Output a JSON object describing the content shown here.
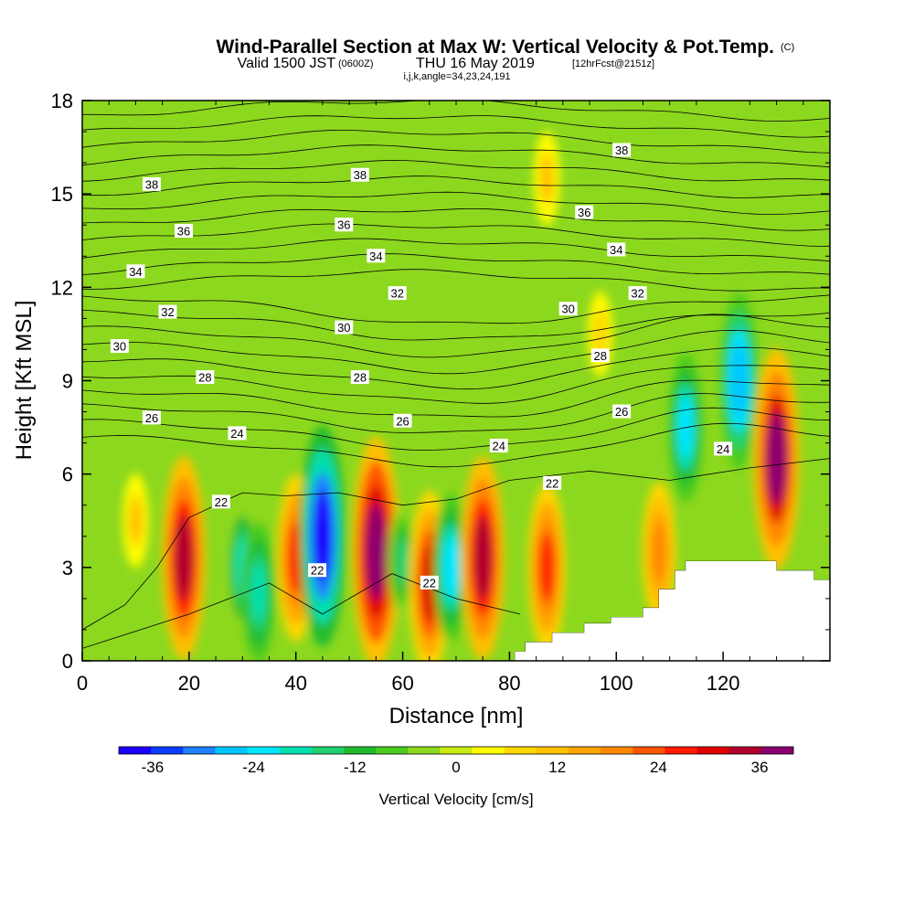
{
  "title": {
    "main": "Wind-Parallel Section at Max W: Vertical Velocity & Pot.Temp.",
    "main_suffix": "(C)",
    "valid_a": "Valid 1500 JST",
    "valid_b": "(0600Z)",
    "valid_c": "THU 16 May 2019",
    "valid_d": "[12hrFcst@2151z]",
    "indices": "i,j,k,angle=34,23,24,191"
  },
  "chart_data": {
    "type": "heatmap",
    "xlabel": "Distance [nm]",
    "ylabel": "Height [Kft MSL]",
    "xlim": [
      0,
      140
    ],
    "ylim": [
      0,
      18
    ],
    "x_ticks": [
      0,
      20,
      40,
      60,
      80,
      100,
      120
    ],
    "y_ticks": [
      0,
      3,
      6,
      9,
      12,
      15,
      18
    ],
    "fill_field": "Vertical Velocity [cm/s]",
    "contour_field": "Potential Temperature (C)",
    "colorbar": {
      "label": "Vertical Velocity [cm/s]",
      "min": -40,
      "max": 40,
      "step": 4,
      "tick_values": [
        -36,
        -24,
        -12,
        0,
        12,
        24,
        36
      ],
      "colors": [
        "#1a00ff",
        "#0a3cff",
        "#1e7fff",
        "#00c6ff",
        "#00e6ff",
        "#00e0b0",
        "#1ed070",
        "#22bb30",
        "#4ccc1e",
        "#8cd81e",
        "#c8ec14",
        "#fffc00",
        "#ffd700",
        "#ffc000",
        "#ffa500",
        "#ff8800",
        "#ff5500",
        "#ff1a00",
        "#e00000",
        "#b0002e",
        "#8b006e"
      ]
    },
    "w_cells": [
      {
        "x": 19,
        "y": 3.3,
        "w": 34,
        "type": "up"
      },
      {
        "x": 10,
        "y": 4.5,
        "w": 10,
        "type": "up"
      },
      {
        "x": 30,
        "y": 3.0,
        "w": -18,
        "type": "down"
      },
      {
        "x": 33,
        "y": 2.2,
        "w": -20,
        "type": "down"
      },
      {
        "x": 40,
        "y": 3.3,
        "w": 26,
        "type": "up"
      },
      {
        "x": 45,
        "y": 4.0,
        "w": -38,
        "type": "down"
      },
      {
        "x": 55,
        "y": 3.5,
        "w": 40,
        "type": "up"
      },
      {
        "x": 60,
        "y": 3.2,
        "w": -14,
        "type": "down"
      },
      {
        "x": 65,
        "y": 2.5,
        "w": 30,
        "type": "up"
      },
      {
        "x": 69,
        "y": 3.0,
        "w": -22,
        "type": "down"
      },
      {
        "x": 75,
        "y": 3.3,
        "w": 34,
        "type": "up"
      },
      {
        "x": 87,
        "y": 3.0,
        "w": 26,
        "type": "up"
      },
      {
        "x": 108,
        "y": 3.5,
        "w": 20,
        "type": "up"
      },
      {
        "x": 113,
        "y": 7.5,
        "w": -22,
        "type": "down"
      },
      {
        "x": 123,
        "y": 9.0,
        "w": -28,
        "type": "down"
      },
      {
        "x": 130,
        "y": 6.5,
        "w": 38,
        "type": "up"
      },
      {
        "x": 87,
        "y": 15.5,
        "w": 10,
        "type": "up"
      },
      {
        "x": 97,
        "y": 10.5,
        "w": 8,
        "type": "up"
      }
    ],
    "contour_levels": [
      {
        "value": "22",
        "labels": [
          [
            26,
            5.1
          ],
          [
            44,
            2.9
          ],
          [
            65,
            2.5
          ],
          [
            88,
            5.7
          ]
        ]
      },
      {
        "value": "24",
        "labels": [
          [
            29,
            7.3
          ],
          [
            78,
            6.9
          ],
          [
            120,
            6.8
          ]
        ]
      },
      {
        "value": "26",
        "labels": [
          [
            13,
            7.8
          ],
          [
            60,
            7.7
          ],
          [
            101,
            8.0
          ]
        ]
      },
      {
        "value": "28",
        "labels": [
          [
            23,
            9.1
          ],
          [
            52,
            9.1
          ],
          [
            97,
            9.8
          ]
        ]
      },
      {
        "value": "30",
        "labels": [
          [
            7,
            10.1
          ],
          [
            49,
            10.7
          ],
          [
            91,
            11.3
          ]
        ]
      },
      {
        "value": "32",
        "labels": [
          [
            16,
            11.2
          ],
          [
            59,
            11.8
          ],
          [
            104,
            11.8
          ]
        ]
      },
      {
        "value": "34",
        "labels": [
          [
            10,
            12.5
          ],
          [
            55,
            13.0
          ],
          [
            100,
            13.2
          ]
        ]
      },
      {
        "value": "36",
        "labels": [
          [
            19,
            13.8
          ],
          [
            49,
            14.0
          ],
          [
            94,
            14.4
          ]
        ]
      },
      {
        "value": "38",
        "labels": [
          [
            13,
            15.3
          ],
          [
            52,
            15.6
          ],
          [
            101,
            16.4
          ]
        ]
      }
    ],
    "terrain_profile": [
      [
        81,
        0
      ],
      [
        81,
        0.3
      ],
      [
        83,
        0.3
      ],
      [
        83,
        0.6
      ],
      [
        88,
        0.6
      ],
      [
        88,
        0.9
      ],
      [
        94,
        0.9
      ],
      [
        94,
        1.2
      ],
      [
        99,
        1.2
      ],
      [
        99,
        1.4
      ],
      [
        105,
        1.4
      ],
      [
        105,
        1.7
      ],
      [
        108,
        1.7
      ],
      [
        108,
        2.3
      ],
      [
        111,
        2.3
      ],
      [
        111,
        2.9
      ],
      [
        113,
        2.9
      ],
      [
        113,
        3.2
      ],
      [
        130,
        3.2
      ],
      [
        130,
        2.9
      ],
      [
        137,
        2.9
      ],
      [
        137,
        2.6
      ],
      [
        140,
        2.6
      ],
      [
        140,
        0
      ]
    ]
  }
}
